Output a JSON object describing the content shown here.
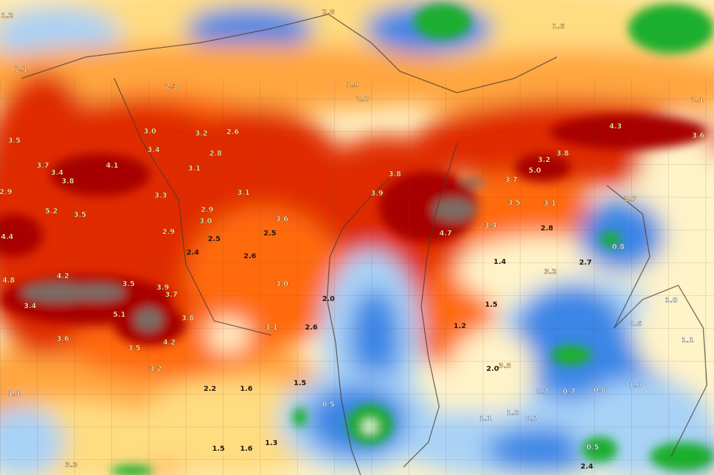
{
  "map": {
    "palette": {
      "dark_red": "#a80000",
      "red": "#e02a00",
      "orange": "#ff6a10",
      "light_orange": "#ffa640",
      "yellow": "#ffdc80",
      "cream": "#fff3c8",
      "light_blue": "#a8d2f6",
      "blue": "#3a86e6",
      "dark_blue": "#1a5cd0",
      "green": "#1fae2e",
      "gray": "#7c6c64",
      "boundary": "#5a4a40"
    },
    "labels": [
      "3.5",
      "3.7",
      "3.4",
      "3.8",
      "4.1",
      "3.0",
      "3.4",
      "3.1",
      "3.3",
      "2.9",
      "5.2",
      "3.5",
      "4.4",
      "4.2",
      "4.8",
      "3.4",
      "5.1",
      "3.5",
      "3.6",
      "3.5",
      "4.2",
      "3.9",
      "3.7",
      "3.8",
      "2.8",
      "3.2",
      "2.6",
      "3.1",
      "2.9",
      "3.0",
      "2.9",
      "2.5",
      "2.4",
      "2.6",
      "3.0",
      "3.1",
      "3.6",
      "2.5",
      "2.6",
      "2.0",
      "3.8",
      "3.9",
      "4.7",
      "3.4",
      "3.7",
      "5.0",
      "3.2",
      "3.8",
      "4.3",
      "3.6",
      "2.7",
      "3.2",
      "1.4",
      "2.7",
      "1.5",
      "1.2",
      "0.8",
      "1.0",
      "1.1",
      "0.6",
      "3.5",
      "3.1",
      "2.8",
      "2.1",
      "1.2",
      "2.3",
      "2.0",
      "1.9",
      "2.8",
      "2.1",
      "1.6",
      "1.1",
      "1.5",
      "0.5",
      "1.1",
      "1.0",
      "0.7",
      "0.7",
      "0.7",
      "0.8",
      "1.0",
      "0.5",
      "2.4",
      "3.3",
      "1.5",
      "1.6",
      "1.3",
      "2.0",
      "3.5",
      "3.2",
      "1.6",
      "2.2"
    ]
  }
}
